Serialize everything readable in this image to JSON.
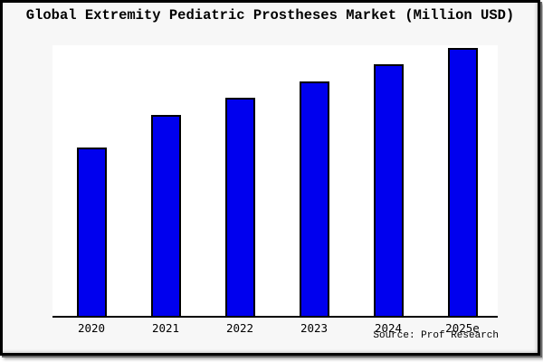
{
  "source": "Source: Prof Research",
  "chart_data": {
    "type": "bar",
    "title": "Global Extremity Pediatric Prostheses Market (Million USD)",
    "categories": [
      "2020",
      "2021",
      "2022",
      "2023",
      "2024",
      "2025e"
    ],
    "values": [
      63,
      75.3,
      81.6,
      87.6,
      94,
      100
    ],
    "xlabel": "",
    "ylabel": "",
    "ylim": [
      0,
      100.7
    ],
    "y_axis_labels_visible": false,
    "grid": false,
    "legend": false,
    "bar_color": "#0000EE",
    "bar_border_color": "#000000",
    "axis_color": "#000000",
    "plot_background": "#ffffff",
    "outer_background": "#f7f7f7",
    "frame_border_color": "#000000"
  }
}
